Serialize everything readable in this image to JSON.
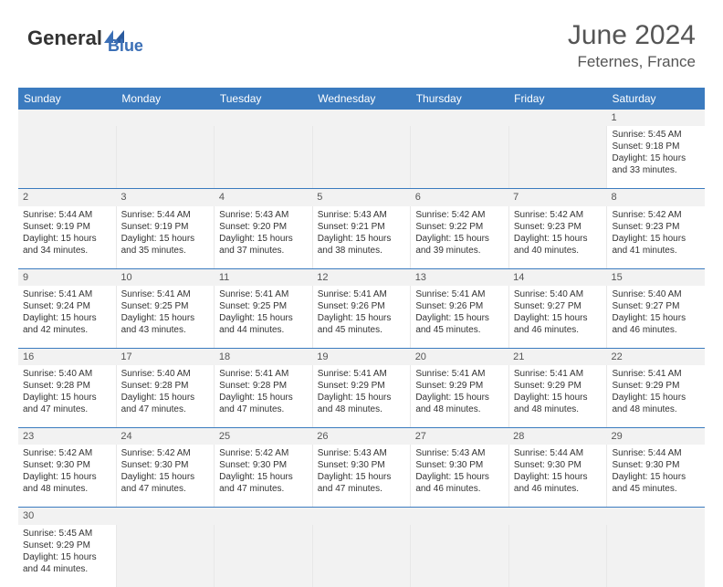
{
  "logo": {
    "general": "General",
    "blue": "Blue"
  },
  "header": {
    "month_title": "June 2024",
    "location": "Feternes, France"
  },
  "day_headers": [
    "Sunday",
    "Monday",
    "Tuesday",
    "Wednesday",
    "Thursday",
    "Friday",
    "Saturday"
  ],
  "colors": {
    "header_bar": "#3b7bbf",
    "row_divider": "#3b7bbf",
    "daynum_bg": "#f2f2f2",
    "text": "#333333",
    "logo_blue": "#3b6fb6"
  },
  "weeks": [
    [
      null,
      null,
      null,
      null,
      null,
      null,
      {
        "n": "1",
        "sunrise": "Sunrise: 5:45 AM",
        "sunset": "Sunset: 9:18 PM",
        "daylight": "Daylight: 15 hours and 33 minutes."
      }
    ],
    [
      {
        "n": "2",
        "sunrise": "Sunrise: 5:44 AM",
        "sunset": "Sunset: 9:19 PM",
        "daylight": "Daylight: 15 hours and 34 minutes."
      },
      {
        "n": "3",
        "sunrise": "Sunrise: 5:44 AM",
        "sunset": "Sunset: 9:19 PM",
        "daylight": "Daylight: 15 hours and 35 minutes."
      },
      {
        "n": "4",
        "sunrise": "Sunrise: 5:43 AM",
        "sunset": "Sunset: 9:20 PM",
        "daylight": "Daylight: 15 hours and 37 minutes."
      },
      {
        "n": "5",
        "sunrise": "Sunrise: 5:43 AM",
        "sunset": "Sunset: 9:21 PM",
        "daylight": "Daylight: 15 hours and 38 minutes."
      },
      {
        "n": "6",
        "sunrise": "Sunrise: 5:42 AM",
        "sunset": "Sunset: 9:22 PM",
        "daylight": "Daylight: 15 hours and 39 minutes."
      },
      {
        "n": "7",
        "sunrise": "Sunrise: 5:42 AM",
        "sunset": "Sunset: 9:23 PM",
        "daylight": "Daylight: 15 hours and 40 minutes."
      },
      {
        "n": "8",
        "sunrise": "Sunrise: 5:42 AM",
        "sunset": "Sunset: 9:23 PM",
        "daylight": "Daylight: 15 hours and 41 minutes."
      }
    ],
    [
      {
        "n": "9",
        "sunrise": "Sunrise: 5:41 AM",
        "sunset": "Sunset: 9:24 PM",
        "daylight": "Daylight: 15 hours and 42 minutes."
      },
      {
        "n": "10",
        "sunrise": "Sunrise: 5:41 AM",
        "sunset": "Sunset: 9:25 PM",
        "daylight": "Daylight: 15 hours and 43 minutes."
      },
      {
        "n": "11",
        "sunrise": "Sunrise: 5:41 AM",
        "sunset": "Sunset: 9:25 PM",
        "daylight": "Daylight: 15 hours and 44 minutes."
      },
      {
        "n": "12",
        "sunrise": "Sunrise: 5:41 AM",
        "sunset": "Sunset: 9:26 PM",
        "daylight": "Daylight: 15 hours and 45 minutes."
      },
      {
        "n": "13",
        "sunrise": "Sunrise: 5:41 AM",
        "sunset": "Sunset: 9:26 PM",
        "daylight": "Daylight: 15 hours and 45 minutes."
      },
      {
        "n": "14",
        "sunrise": "Sunrise: 5:40 AM",
        "sunset": "Sunset: 9:27 PM",
        "daylight": "Daylight: 15 hours and 46 minutes."
      },
      {
        "n": "15",
        "sunrise": "Sunrise: 5:40 AM",
        "sunset": "Sunset: 9:27 PM",
        "daylight": "Daylight: 15 hours and 46 minutes."
      }
    ],
    [
      {
        "n": "16",
        "sunrise": "Sunrise: 5:40 AM",
        "sunset": "Sunset: 9:28 PM",
        "daylight": "Daylight: 15 hours and 47 minutes."
      },
      {
        "n": "17",
        "sunrise": "Sunrise: 5:40 AM",
        "sunset": "Sunset: 9:28 PM",
        "daylight": "Daylight: 15 hours and 47 minutes."
      },
      {
        "n": "18",
        "sunrise": "Sunrise: 5:41 AM",
        "sunset": "Sunset: 9:28 PM",
        "daylight": "Daylight: 15 hours and 47 minutes."
      },
      {
        "n": "19",
        "sunrise": "Sunrise: 5:41 AM",
        "sunset": "Sunset: 9:29 PM",
        "daylight": "Daylight: 15 hours and 48 minutes."
      },
      {
        "n": "20",
        "sunrise": "Sunrise: 5:41 AM",
        "sunset": "Sunset: 9:29 PM",
        "daylight": "Daylight: 15 hours and 48 minutes."
      },
      {
        "n": "21",
        "sunrise": "Sunrise: 5:41 AM",
        "sunset": "Sunset: 9:29 PM",
        "daylight": "Daylight: 15 hours and 48 minutes."
      },
      {
        "n": "22",
        "sunrise": "Sunrise: 5:41 AM",
        "sunset": "Sunset: 9:29 PM",
        "daylight": "Daylight: 15 hours and 48 minutes."
      }
    ],
    [
      {
        "n": "23",
        "sunrise": "Sunrise: 5:42 AM",
        "sunset": "Sunset: 9:30 PM",
        "daylight": "Daylight: 15 hours and 48 minutes."
      },
      {
        "n": "24",
        "sunrise": "Sunrise: 5:42 AM",
        "sunset": "Sunset: 9:30 PM",
        "daylight": "Daylight: 15 hours and 47 minutes."
      },
      {
        "n": "25",
        "sunrise": "Sunrise: 5:42 AM",
        "sunset": "Sunset: 9:30 PM",
        "daylight": "Daylight: 15 hours and 47 minutes."
      },
      {
        "n": "26",
        "sunrise": "Sunrise: 5:43 AM",
        "sunset": "Sunset: 9:30 PM",
        "daylight": "Daylight: 15 hours and 47 minutes."
      },
      {
        "n": "27",
        "sunrise": "Sunrise: 5:43 AM",
        "sunset": "Sunset: 9:30 PM",
        "daylight": "Daylight: 15 hours and 46 minutes."
      },
      {
        "n": "28",
        "sunrise": "Sunrise: 5:44 AM",
        "sunset": "Sunset: 9:30 PM",
        "daylight": "Daylight: 15 hours and 46 minutes."
      },
      {
        "n": "29",
        "sunrise": "Sunrise: 5:44 AM",
        "sunset": "Sunset: 9:30 PM",
        "daylight": "Daylight: 15 hours and 45 minutes."
      }
    ],
    [
      {
        "n": "30",
        "sunrise": "Sunrise: 5:45 AM",
        "sunset": "Sunset: 9:29 PM",
        "daylight": "Daylight: 15 hours and 44 minutes."
      },
      null,
      null,
      null,
      null,
      null,
      null
    ]
  ]
}
